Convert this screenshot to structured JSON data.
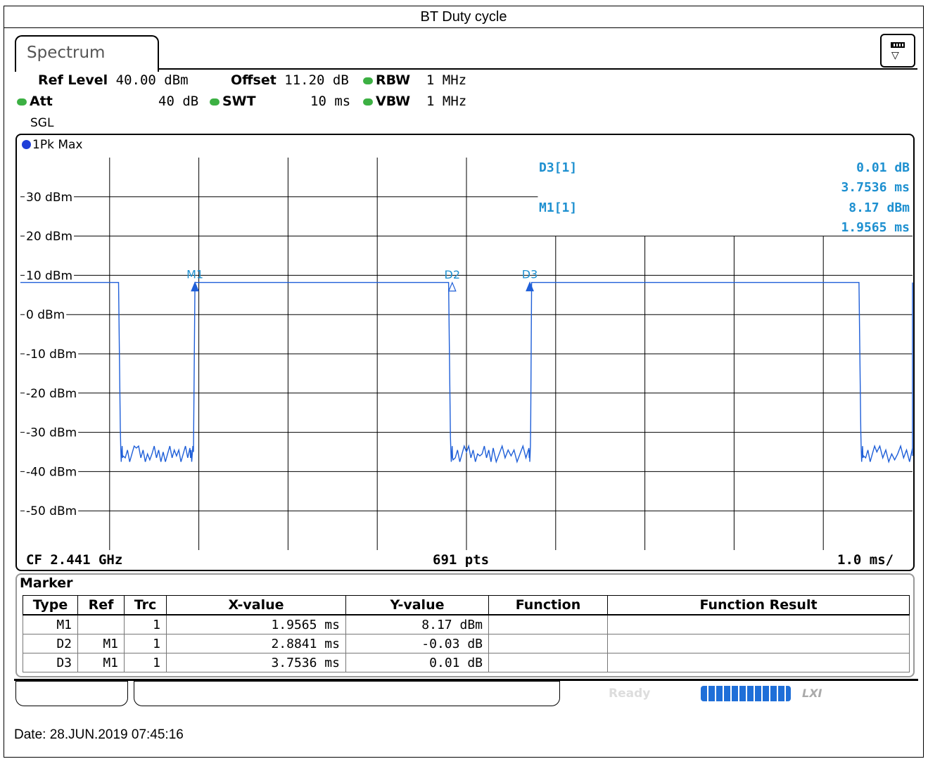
{
  "title": "BT Duty cycle",
  "tab": "Spectrum",
  "settings": {
    "ref_level_label": "Ref Level",
    "ref_level": "40.00 dBm",
    "offset_label": "Offset",
    "offset": "11.20 dB",
    "rbw_label": "RBW",
    "rbw": "1 MHz",
    "att_label": "Att",
    "att": "40 dB",
    "swt_label": "SWT",
    "swt": "10 ms",
    "vbw_label": "VBW",
    "vbw": "1 MHz",
    "mode": "SGL"
  },
  "trace_label": "1Pk Max",
  "footer": {
    "cf": "CF 2.441 GHz",
    "pts": "691 pts",
    "span_div": "1.0 ms/"
  },
  "marker_readout": [
    {
      "name": "D3[1]",
      "value1": "0.01 dB",
      "value2": "3.7536 ms"
    },
    {
      "name": "M1[1]",
      "value1": "8.17 dBm",
      "value2": "1.9565 ms"
    }
  ],
  "marker_table": {
    "title": "Marker",
    "headers": [
      "Type",
      "Ref",
      "Trc",
      "X-value",
      "Y-value",
      "Function",
      "Function Result"
    ],
    "rows": [
      [
        "M1",
        "",
        "1",
        "1.9565 ms",
        "8.17 dBm",
        "",
        ""
      ],
      [
        "D2",
        "M1",
        "1",
        "2.8841 ms",
        "-0.03 dB",
        "",
        ""
      ],
      [
        "D3",
        "M1",
        "1",
        "3.7536 ms",
        "0.01 dB",
        "",
        ""
      ]
    ]
  },
  "status": {
    "ready": "Ready",
    "logo": "LXI"
  },
  "date": "Date: 28.JUN.2019  07:45:16",
  "colors": {
    "trace": "#1f5fd8",
    "marker_text": "#1e90d0",
    "grid": "#000000"
  },
  "chart_data": {
    "type": "line",
    "title": "",
    "xlabel": "",
    "ylabel": "",
    "x_unit": "ms",
    "y_unit": "dBm",
    "xlim": [
      0,
      10
    ],
    "ylim": [
      -60,
      40
    ],
    "y_ticks": [
      30,
      20,
      10,
      0,
      -10,
      -20,
      -30,
      -40,
      -50
    ],
    "y_tick_labels": [
      "30 dBm",
      "20 dBm",
      "10 dBm",
      "0 dBm",
      "-10 dBm",
      "-20 dBm",
      "-30 dBm",
      "-40 dBm",
      "-50 dBm"
    ],
    "grid": true,
    "series": [
      {
        "x": [
          0,
          1.1,
          1.12,
          1.15,
          1.3,
          1.45,
          1.6,
          1.75,
          1.9,
          1.94,
          1.9565,
          4.8,
          4.82,
          4.85,
          5.0,
          5.15,
          5.3,
          5.5,
          5.7,
          5.72,
          5.73,
          9.4,
          9.42,
          9.45,
          9.6,
          9.8,
          10.0,
          10.2,
          10.25,
          10.27,
          10.3,
          10.5
        ],
        "y": [
          8.17,
          8.17,
          -29,
          -36,
          -34,
          -37,
          -35,
          -36,
          -34,
          -35,
          8.17,
          8.17,
          -31,
          -37,
          -35,
          -36,
          -34,
          -36,
          -34,
          -28,
          8.18,
          8.18,
          -30,
          -36,
          -35,
          -37,
          -34,
          -36,
          -33,
          -30,
          8.17,
          8.17
        ]
      }
    ],
    "markers": [
      {
        "label": "M1",
        "x": 1.9565,
        "y": 8.17,
        "filled": true
      },
      {
        "label": "D2",
        "x": 4.8406,
        "y": 8.14,
        "filled": false
      },
      {
        "label": "D3",
        "x": 5.7101,
        "y": 8.18,
        "filled": true
      }
    ]
  }
}
